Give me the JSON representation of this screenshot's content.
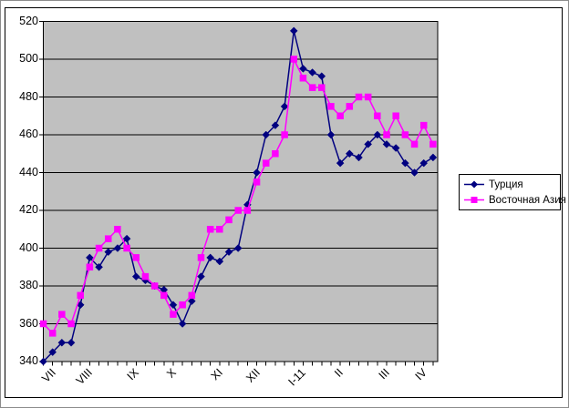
{
  "chart_data": {
    "type": "line",
    "plot_background": "#c0c0c0",
    "grid": true,
    "grid_color": "#000000",
    "frame_color": "#000000",
    "legend_position": "middle-right",
    "y_axis": {
      "min": 340,
      "max": 520,
      "step": 20,
      "tick_labels": [
        "520",
        "500",
        "480",
        "460",
        "440",
        "420",
        "400",
        "380",
        "360",
        "340"
      ]
    },
    "x_axis": {
      "n_points": 43,
      "tick_labels": [
        "VII",
        "VIII",
        "IX",
        "X",
        "XI",
        "XII",
        "I-11",
        "II",
        "III",
        "IV"
      ],
      "label_point_indices": [
        1,
        5,
        10,
        14,
        19,
        23,
        28,
        32,
        37,
        41
      ]
    },
    "series": [
      {
        "name": "Турция",
        "color": "#000080",
        "marker": "diamond",
        "values": [
          340,
          345,
          350,
          350,
          370,
          395,
          390,
          398,
          400,
          405,
          385,
          383,
          380,
          378,
          370,
          360,
          372,
          385,
          395,
          393,
          398,
          400,
          423,
          440,
          460,
          465,
          475,
          515,
          495,
          493,
          491,
          460,
          445,
          450,
          448,
          455,
          460,
          455,
          453,
          445,
          440,
          445,
          448
        ]
      },
      {
        "name": "Восточная Азия",
        "color": "#ff00ff",
        "marker": "square",
        "values": [
          360,
          355,
          365,
          360,
          375,
          390,
          400,
          405,
          410,
          400,
          395,
          385,
          380,
          375,
          365,
          370,
          375,
          395,
          410,
          410,
          415,
          420,
          420,
          435,
          445,
          450,
          460,
          500,
          490,
          485,
          485,
          475,
          470,
          475,
          480,
          480,
          470,
          460,
          470,
          460,
          455,
          465,
          455
        ]
      }
    ]
  },
  "legend": {
    "items": [
      "Турция",
      "Восточная Азия"
    ]
  }
}
